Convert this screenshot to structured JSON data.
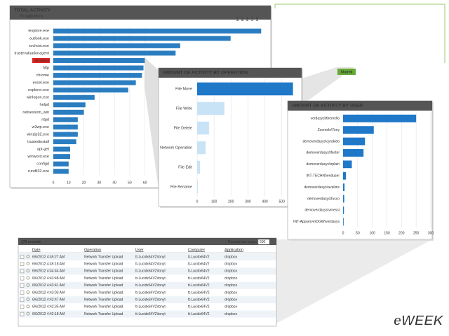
{
  "chart_data": [
    {
      "type": "bar",
      "title": "TOTAL ACTIVITY",
      "subtitle": "70 applications",
      "pages": [
        1,
        2,
        3,
        4,
        5
      ],
      "categories": [
        "iexplore.exe",
        "outlook.exe",
        "svchost.exe",
        "trustevaluationagent",
        "dropbox",
        "http",
        "chrome",
        "excel.exe",
        "explorer.exe",
        "winlogon.exe",
        "helpd",
        "netsession_win",
        "ntpd",
        "w3wp.exe",
        "winzip32.exe",
        "trustedinstall",
        "apt-get",
        "winword.exe",
        "configd",
        "rundll32.exe"
      ],
      "values": [
        136,
        116,
        83,
        80,
        60,
        59,
        58,
        54,
        49,
        27,
        21,
        20,
        16,
        16,
        16,
        15,
        11,
        11,
        10,
        10
      ],
      "color": "#2a7dc0",
      "highlighted_index": 4,
      "xlim": [
        0,
        140
      ],
      "xticks": [
        0,
        10,
        20,
        30,
        40,
        50,
        60
      ],
      "grid": true
    },
    {
      "type": "bar",
      "title": "AMOUNT OF ACTIVITY BY OPERATION",
      "categories": [
        "File Move",
        "File Write",
        "File Delete",
        "Network Operation",
        "File Edit",
        "File Rename"
      ],
      "values": [
        566,
        161,
        70,
        50,
        17,
        4
      ],
      "colors": [
        "#1f78c8",
        "#c9e3f6",
        "#c9e3f6",
        "#c9e3f6",
        "#c9e3f6",
        "#c9e3f6"
      ],
      "xlim": [
        0,
        580
      ],
      "xticks": [
        0,
        100,
        200,
        300,
        400,
        500
      ],
      "grid": true
    },
    {
      "type": "bar",
      "title": "AMOUNT OF ACTIVITY BY USER",
      "categories": [
        "verdasys\\lthemello",
        "Zoomelo\\Tony",
        "demoverdasys\\cyrakido",
        "demoverdasys\\lfecter",
        "demoverdasys\\trplain",
        "INT-TECHNI\\enduser",
        "demoverdasys\\availins",
        "demoverdasys\\fusco",
        "demoverdasys\\vmessi",
        "INT-AppserverDGW\\verdasys"
      ],
      "values": [
        250,
        105,
        75,
        70,
        30,
        10,
        5,
        4,
        3,
        2
      ],
      "color": "#1f78c8",
      "xlim": [
        0,
        300
      ],
      "xticks": [
        0,
        50,
        100,
        150,
        200,
        250,
        300
      ],
      "grid": true
    }
  ],
  "badge": "Shared",
  "table": {
    "count_label": "179 records",
    "per_page_label": "Records per page:",
    "per_page": "500",
    "columns": [
      "Date",
      "Operation",
      "User",
      "Computer",
      "Application"
    ],
    "rows": [
      [
        "6/6/2012 4:45:27 AM",
        "Network Transfer Upload",
        "tt-Lucidx64V2\\tonyt",
        "tt-Lucidx64V2",
        "dropbox"
      ],
      [
        "6/6/2012 4:45:18 AM",
        "Network Transfer Upload",
        "tt-Lucidx64V2\\tonyt",
        "tt-Lucidx64V2",
        "dropbox"
      ],
      [
        "6/6/2012 4:44:44 AM",
        "Network Transfer Upload",
        "tt-Lucidx64V2\\tonyt",
        "tt-Lucidx64V2",
        "dropbox"
      ],
      [
        "6/6/2012 4:43:48 AM",
        "Network Transfer Upload",
        "tt-Lucidx64V2\\tonyt",
        "tt-Lucidx64V2",
        "dropbox"
      ],
      [
        "6/6/2012 4:43:41 AM",
        "Network Transfer Upload",
        "tt-Lucidx64V2\\tonyt",
        "tt-Lucidx64V2",
        "dropbox"
      ],
      [
        "6/6/2012 4:43:03 AM",
        "Network Transfer Upload",
        "tt-Lucidx64V2\\tonyt",
        "tt-Lucidx64V2",
        "dropbox"
      ],
      [
        "6/6/2012 4:42:47 AM",
        "Network Transfer Upload",
        "tt-Lucidx64V2\\tonyt",
        "tt-Lucidx64V2",
        "dropbox"
      ],
      [
        "6/6/2012 4:42:35 AM",
        "Network Transfer Upload",
        "tt-Lucidx64V2\\tonyt",
        "tt-Lucidx64V2",
        "dropbox"
      ],
      [
        "6/6/2012 4:42:18 AM",
        "Network Transfer Upload",
        "tt-Lucidx64V2\\tonyt",
        "tt-Lucidx64V2",
        "dropbox"
      ]
    ]
  },
  "watermark": "eWEEK"
}
